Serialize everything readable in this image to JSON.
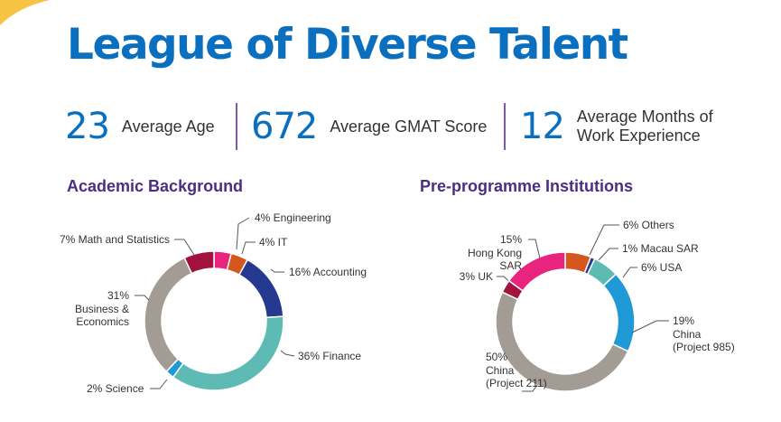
{
  "title": "League of Diverse Talent",
  "stats": [
    {
      "value": "23",
      "label": "Average Age"
    },
    {
      "value": "672",
      "label": "Average GMAT Score"
    },
    {
      "value": "12",
      "label_lines": [
        "Average Months of",
        "Work Experience"
      ]
    }
  ],
  "colors": {
    "title_blue": "#0a6fbf",
    "section_purple": "#4b2e83",
    "divider": "#7c5ba8",
    "corner_accent": "#f6c343"
  },
  "chart_data": [
    {
      "type": "pie",
      "title": "Academic Background",
      "slices": [
        {
          "value": 4,
          "pct": "4%",
          "label_lines": [
            "Engineering"
          ],
          "color": "#e8247e"
        },
        {
          "value": 4,
          "pct": "4%",
          "label_lines": [
            "IT"
          ],
          "color": "#d4571d"
        },
        {
          "value": 16,
          "pct": "16%",
          "label_lines": [
            "Accounting"
          ],
          "color": "#24398f"
        },
        {
          "value": 36,
          "pct": "36%",
          "label_lines": [
            "Finance"
          ],
          "color": "#5ebbb3"
        },
        {
          "value": 2,
          "pct": "2%",
          "label_lines": [
            "Science"
          ],
          "color": "#1f9ad6"
        },
        {
          "value": 31,
          "pct": "31%",
          "label_lines": [
            "Business &",
            "Economics"
          ],
          "color": "#a39c95"
        },
        {
          "value": 7,
          "pct": "7%",
          "label_lines": [
            "Math and Statistics"
          ],
          "color": "#a3123f"
        }
      ]
    },
    {
      "type": "pie",
      "title": "Pre-programme Institutions",
      "slices": [
        {
          "value": 6,
          "pct": "6%",
          "label_lines": [
            "Others"
          ],
          "color": "#d4571d"
        },
        {
          "value": 1,
          "pct": "1%",
          "label_lines": [
            "Macau  SAR"
          ],
          "color": "#24398f"
        },
        {
          "value": 6,
          "pct": "6%",
          "label_lines": [
            "USA"
          ],
          "color": "#5ebbb3"
        },
        {
          "value": 19,
          "pct": "19%",
          "label_lines": [
            "China",
            "(Project 985)"
          ],
          "color": "#1f9ad6"
        },
        {
          "value": 50,
          "pct": "50%",
          "label_lines": [
            "China",
            "(Project 211)"
          ],
          "color": "#a39c95"
        },
        {
          "value": 3,
          "pct": "3%",
          "label_lines": [
            "UK"
          ],
          "color": "#a3123f"
        },
        {
          "value": 15,
          "pct": "15%",
          "label_lines": [
            "Hong Kong",
            "SAR"
          ],
          "color": "#e8247e"
        }
      ]
    }
  ]
}
